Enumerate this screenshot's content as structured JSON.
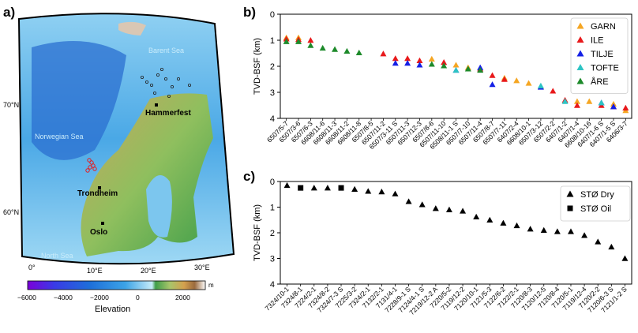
{
  "panels": {
    "a": "a)",
    "b": "b)",
    "c": "c)"
  },
  "map": {
    "seas": [
      "Barent Sea",
      "Norwegian Sea",
      "North Sea"
    ],
    "places": [
      "Hammerfest",
      "Trondheim",
      "Oslo"
    ],
    "lat_labels": [
      "70°N",
      "60°N"
    ],
    "lon_labels": [
      "0°",
      "10°E",
      "20°E",
      "30°E"
    ],
    "colorbar": {
      "ticks": [
        "−6000",
        "−4000",
        "−2000",
        "0",
        "2000"
      ],
      "unit": "m",
      "label": "Elevation",
      "colors": [
        "#7b00d9",
        "#3a3ae6",
        "#1e6fd9",
        "#3ca3e6",
        "#8fd3f0",
        "#c6ecfa",
        "#3f9e4a",
        "#a8c56a",
        "#d4a14e",
        "#9a6a3e",
        "#e8d8cc",
        "#ffffff"
      ]
    }
  },
  "chart_data": [
    {
      "type": "scatter",
      "ylabel": "TVD-BSF (km)",
      "ylim": [
        4,
        0
      ],
      "yticks": [
        "0",
        "1",
        "2",
        "3",
        "4"
      ],
      "categories": [
        "6507/5-7",
        "6507/3-6",
        "6507/6-3",
        "6608/11-6",
        "6608/11-3",
        "6608/11-2",
        "6608/11-8",
        "6507/8-5",
        "6507/11-2",
        "6507/3-11 S",
        "6507/11-3",
        "6507/12-3",
        "6507/8-6",
        "6507/11-10",
        "6508/11-1 S",
        "6507/7-10",
        "6507/11-4",
        "6507/8-7",
        "6507/7-11",
        "6407/2-4",
        "6608/10-1",
        "6507/3-12",
        "6507/2-2",
        "6407/1-2",
        "6407/1-4",
        "6608/10-16",
        "6407/1-6 S",
        "6407/1-5 S",
        "6406/3-7"
      ],
      "legend_position": "top-right",
      "series": [
        {
          "name": "GARN",
          "color": "#f5a623",
          "points": [
            [
              0,
              0.9
            ],
            [
              1,
              0.9
            ],
            [
              12,
              1.72
            ],
            [
              14,
              1.95
            ],
            [
              15,
              2.05
            ],
            [
              18,
              2.45
            ],
            [
              19,
              2.55
            ],
            [
              20,
              2.65
            ],
            [
              21,
              2.78
            ],
            [
              24,
              3.35
            ],
            [
              25,
              3.35
            ],
            [
              27,
              3.45
            ],
            [
              28,
              3.7
            ]
          ]
        },
        {
          "name": "ILE",
          "color": "#e8191b",
          "points": [
            [
              0,
              0.95
            ],
            [
              1,
              0.97
            ],
            [
              2,
              1.0
            ],
            [
              8,
              1.52
            ],
            [
              9,
              1.7
            ],
            [
              10,
              1.7
            ],
            [
              11,
              1.78
            ],
            [
              13,
              1.85
            ],
            [
              16,
              2.1
            ],
            [
              17,
              2.35
            ],
            [
              18,
              2.5
            ],
            [
              22,
              2.95
            ],
            [
              23,
              3.3
            ],
            [
              24,
              3.5
            ],
            [
              26,
              3.5
            ],
            [
              27,
              3.55
            ],
            [
              28,
              3.6
            ]
          ]
        },
        {
          "name": "TILJE",
          "color": "#1420e6",
          "points": [
            [
              9,
              1.88
            ],
            [
              10,
              1.88
            ],
            [
              11,
              1.95
            ],
            [
              14,
              2.15
            ],
            [
              16,
              2.05
            ],
            [
              17,
              2.7
            ],
            [
              21,
              2.8
            ],
            [
              26,
              3.4
            ],
            [
              27,
              3.55
            ]
          ]
        },
        {
          "name": "TOFTE",
          "color": "#2ec4c4",
          "points": [
            [
              14,
              2.15
            ],
            [
              21,
              2.75
            ],
            [
              23,
              3.35
            ],
            [
              26,
              3.4
            ]
          ]
        },
        {
          "name": "ÅRE",
          "color": "#1d8a2a",
          "points": [
            [
              0,
              1.05
            ],
            [
              1,
              1.05
            ],
            [
              2,
              1.2
            ],
            [
              3,
              1.3
            ],
            [
              4,
              1.35
            ],
            [
              5,
              1.42
            ],
            [
              6,
              1.48
            ],
            [
              12,
              1.92
            ],
            [
              13,
              1.98
            ],
            [
              15,
              2.1
            ],
            [
              16,
              2.15
            ]
          ]
        }
      ]
    },
    {
      "type": "scatter",
      "ylabel": "TVD-BSF (km)",
      "ylim": [
        4,
        0
      ],
      "yticks": [
        "0",
        "1",
        "2",
        "3",
        "4"
      ],
      "categories": [
        "7324/10-1",
        "7324/8-1",
        "7224/2-1",
        "7324/8-2",
        "7324/7-3 S",
        "7225/3-2",
        "7324/2-1",
        "7132/2-1",
        "7131/4-1",
        "7228/9-1 S",
        "7124/4-1 S",
        "7219/12-2 A",
        "7220/5-2",
        "7119/12-2",
        "7120/10-1",
        "7121/5-3",
        "7122/6-2",
        "7122/2-1",
        "7120/8-3",
        "7120/12-5",
        "7120/8-4",
        "7120/5-1",
        "7119/12-4",
        "7120/2-2",
        "7120/6-3 S",
        "7121/1-2 S"
      ],
      "legend_position": "top-right",
      "series": [
        {
          "name": "STØ Dry",
          "marker": "triangle",
          "points": [
            [
              0,
              0.15
            ],
            [
              2,
              0.25
            ],
            [
              3,
              0.25
            ],
            [
              5,
              0.3
            ],
            [
              6,
              0.38
            ],
            [
              7,
              0.4
            ],
            [
              8,
              0.48
            ],
            [
              9,
              0.78
            ],
            [
              10,
              0.9
            ],
            [
              11,
              1.05
            ],
            [
              12,
              1.1
            ],
            [
              13,
              1.15
            ],
            [
              14,
              1.38
            ],
            [
              15,
              1.5
            ],
            [
              16,
              1.62
            ],
            [
              17,
              1.72
            ],
            [
              18,
              1.85
            ],
            [
              19,
              1.9
            ],
            [
              20,
              1.95
            ],
            [
              21,
              1.95
            ],
            [
              22,
              2.1
            ],
            [
              23,
              2.35
            ],
            [
              24,
              2.55
            ],
            [
              25,
              3.0
            ]
          ]
        },
        {
          "name": "STØ Oil",
          "marker": "square",
          "points": [
            [
              1,
              0.25
            ],
            [
              4,
              0.25
            ]
          ]
        }
      ]
    }
  ]
}
